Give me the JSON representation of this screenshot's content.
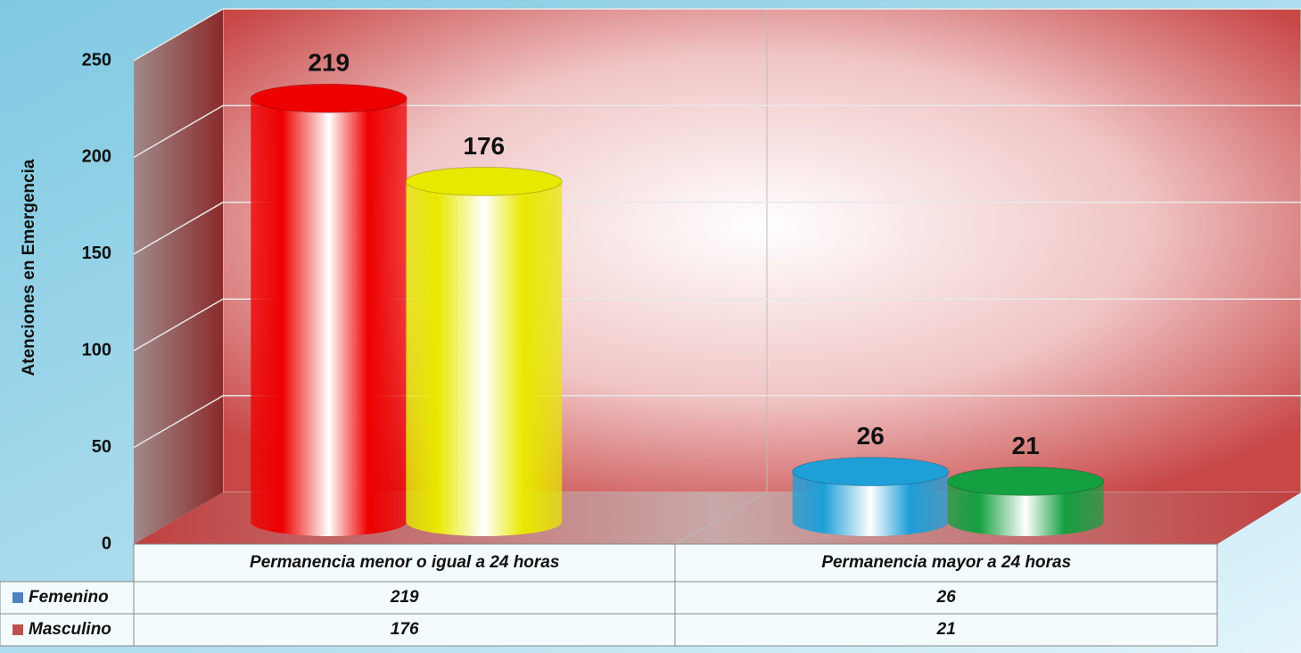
{
  "chart_data": {
    "type": "bar3d",
    "y_label": "Atenciones en Emergencia",
    "categories": [
      "Permanencia menor o igual a 24 horas",
      "Permanencia mayor a 24 horas"
    ],
    "series": [
      {
        "name": "Femenino",
        "color": "#4f81bd",
        "bar_colors": [
          "#ee0000",
          "#1e9fd8"
        ],
        "values": [
          219,
          26
        ]
      },
      {
        "name": "Masculino",
        "color": "#c0504d",
        "bar_colors": [
          "#e8e800",
          "#14a040"
        ],
        "values": [
          176,
          21
        ]
      }
    ],
    "ylim": [
      0,
      250
    ],
    "yticks": [
      0,
      50,
      100,
      150,
      200,
      250
    ],
    "grid": true
  }
}
